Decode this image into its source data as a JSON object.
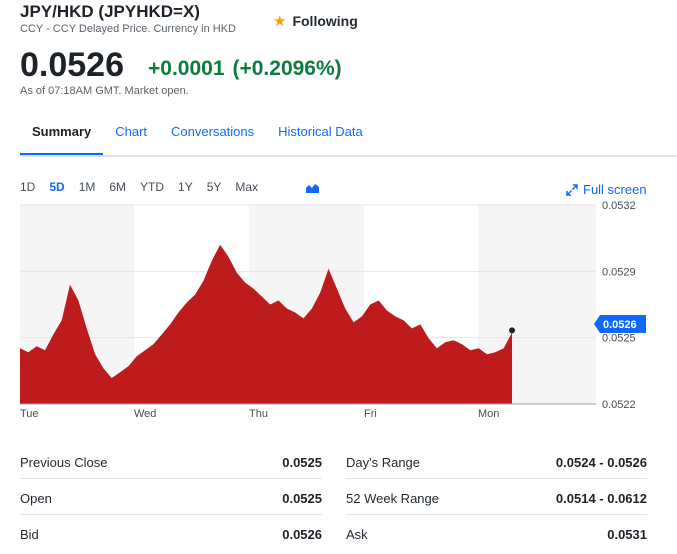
{
  "header": {
    "title": "JPY/HKD (JPYHKD=X)",
    "subtitle": "CCY - CCY Delayed Price. Currency in HKD",
    "follow_label": "Following",
    "star_icon": "star-icon"
  },
  "quote": {
    "price": "0.0526",
    "change": "+0.0001",
    "change_pct": "(+0.2096%)",
    "as_of": "As of 07:18AM GMT. Market open."
  },
  "tabs": [
    {
      "label": "Summary"
    },
    {
      "label": "Chart"
    },
    {
      "label": "Conversations"
    },
    {
      "label": "Historical Data"
    }
  ],
  "ranges": [
    "1D",
    "5D",
    "1M",
    "6M",
    "YTD",
    "1Y",
    "5Y",
    "Max"
  ],
  "active_range": "5D",
  "fullscreen_label": "Full screen",
  "chart_data": {
    "type": "area",
    "x_labels": [
      "Tue",
      "Wed",
      "Thu",
      "Fri",
      "Mon"
    ],
    "y_ticks": [
      "0.0532",
      "0.0529",
      "0.0525",
      "0.0522"
    ],
    "ylim": [
      0.0522,
      0.0532
    ],
    "current_label": "0.0526",
    "fill_color": "#be1c1c",
    "values": [
      0.05248,
      0.05246,
      0.05249,
      0.05247,
      0.05255,
      0.05262,
      0.0528,
      0.05272,
      0.05258,
      0.05245,
      0.05238,
      0.05233,
      0.05236,
      0.05239,
      0.05244,
      0.05247,
      0.0525,
      0.05255,
      0.0526,
      0.05266,
      0.05271,
      0.05275,
      0.05282,
      0.05292,
      0.053,
      0.05294,
      0.05286,
      0.05281,
      0.05278,
      0.05274,
      0.0527,
      0.05272,
      0.05268,
      0.05266,
      0.05263,
      0.05268,
      0.05276,
      0.05288,
      0.05278,
      0.05268,
      0.05261,
      0.05264,
      0.0527,
      0.05272,
      0.05267,
      0.05264,
      0.05262,
      0.05258,
      0.0526,
      0.05253,
      0.05248,
      0.05251,
      0.05252,
      0.0525,
      0.05247,
      0.05248,
      0.05245,
      0.05246,
      0.05248,
      0.05256
    ],
    "grid": true
  },
  "stats": {
    "left": [
      {
        "label": "Previous Close",
        "value": "0.0525"
      },
      {
        "label": "Open",
        "value": "0.0525"
      },
      {
        "label": "Bid",
        "value": "0.0526"
      }
    ],
    "right": [
      {
        "label": "Day's Range",
        "value": "0.0524 - 0.0526"
      },
      {
        "label": "52 Week Range",
        "value": "0.0514 - 0.0612"
      },
      {
        "label": "Ask",
        "value": "0.0531"
      }
    ]
  }
}
